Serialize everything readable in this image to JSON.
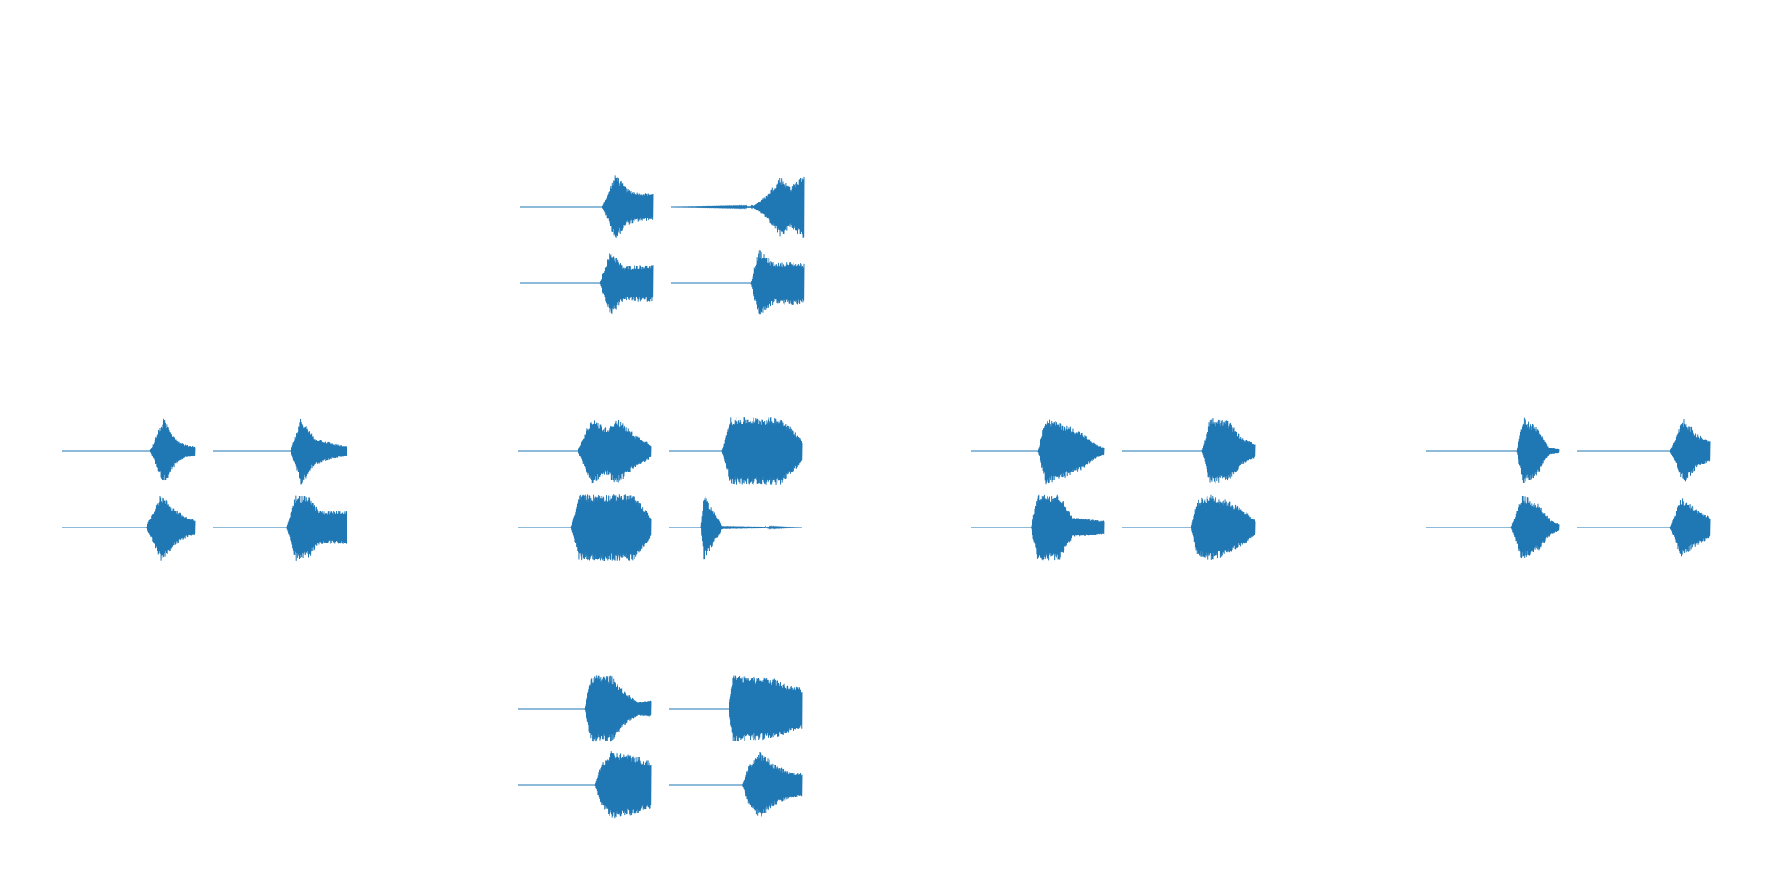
{
  "page": {
    "background": "#ffffff",
    "stroke_color": "#1f77b4"
  },
  "chart_data": {
    "type": "line",
    "description_note": "",
    "axes_visible": false,
    "groups": [
      {
        "group": "top-center",
        "panels": [
          {
            "profile": [
              [
                0.0,
                0.0
              ],
              [
                0.62,
                0.0
              ],
              [
                0.72,
                1.0
              ],
              [
                0.8,
                0.55
              ],
              [
                0.88,
                0.45
              ],
              [
                1.0,
                0.4
              ]
            ],
            "density": 1.0
          },
          {
            "profile": [
              [
                0.0,
                0.0
              ],
              [
                0.62,
                0.02
              ],
              [
                0.72,
                0.35
              ],
              [
                0.82,
                0.9
              ],
              [
                0.9,
                0.6
              ],
              [
                1.0,
                1.0
              ]
            ],
            "density": 1.1
          },
          {
            "profile": [
              [
                0.0,
                0.0
              ],
              [
                0.6,
                0.0
              ],
              [
                0.68,
                1.0
              ],
              [
                0.78,
                0.5
              ],
              [
                0.86,
                0.55
              ],
              [
                1.0,
                0.55
              ]
            ],
            "density": 1.0
          },
          {
            "profile": [
              [
                0.0,
                0.0
              ],
              [
                0.6,
                0.0
              ],
              [
                0.66,
                1.0
              ],
              [
                0.78,
                0.6
              ],
              [
                0.88,
                0.65
              ],
              [
                1.0,
                0.6
              ]
            ],
            "density": 1.0
          }
        ]
      },
      {
        "group": "middle-left",
        "panels": [
          {
            "profile": [
              [
                0.0,
                0.0
              ],
              [
                0.66,
                0.0
              ],
              [
                0.76,
                1.0
              ],
              [
                0.86,
                0.35
              ],
              [
                0.92,
                0.2
              ],
              [
                1.0,
                0.15
              ]
            ],
            "density": 1.0
          },
          {
            "profile": [
              [
                0.0,
                0.0
              ],
              [
                0.58,
                0.0
              ],
              [
                0.66,
                1.0
              ],
              [
                0.76,
                0.4
              ],
              [
                0.88,
                0.25
              ],
              [
                1.0,
                0.15
              ]
            ],
            "density": 1.0
          },
          {
            "profile": [
              [
                0.0,
                0.0
              ],
              [
                0.63,
                0.0
              ],
              [
                0.74,
                1.0
              ],
              [
                0.86,
                0.5
              ],
              [
                0.94,
                0.3
              ],
              [
                1.0,
                0.2
              ]
            ],
            "density": 1.0
          },
          {
            "profile": [
              [
                0.0,
                0.0
              ],
              [
                0.55,
                0.0
              ],
              [
                0.62,
                1.0
              ],
              [
                0.72,
                0.9
              ],
              [
                0.8,
                0.5
              ],
              [
                1.0,
                0.5
              ]
            ],
            "density": 1.0
          }
        ]
      },
      {
        "group": "middle-center",
        "panels": [
          {
            "profile": [
              [
                0.0,
                0.0
              ],
              [
                0.45,
                0.0
              ],
              [
                0.55,
                1.0
              ],
              [
                0.66,
                0.7
              ],
              [
                0.74,
                1.0
              ],
              [
                0.88,
                0.5
              ],
              [
                1.0,
                0.2
              ]
            ],
            "density": 1.0
          },
          {
            "profile": [
              [
                0.0,
                0.0
              ],
              [
                0.4,
                0.0
              ],
              [
                0.46,
                1.0
              ],
              [
                0.84,
                1.0
              ],
              [
                0.94,
                0.6
              ],
              [
                1.0,
                0.3
              ]
            ],
            "density": 1.3
          },
          {
            "profile": [
              [
                0.0,
                0.0
              ],
              [
                0.4,
                0.0
              ],
              [
                0.46,
                1.0
              ],
              [
                0.86,
                1.0
              ],
              [
                0.96,
                0.5
              ],
              [
                1.0,
                0.3
              ]
            ],
            "density": 1.3
          },
          {
            "profile": [
              [
                0.0,
                0.0
              ],
              [
                0.24,
                0.0
              ],
              [
                0.26,
                1.0
              ],
              [
                0.32,
                0.6
              ],
              [
                0.4,
                0.05
              ],
              [
                1.0,
                0.0
              ]
            ],
            "density": 1.0
          }
        ]
      },
      {
        "group": "middle-right",
        "panels": [
          {
            "profile": [
              [
                0.0,
                0.0
              ],
              [
                0.5,
                0.0
              ],
              [
                0.56,
                1.0
              ],
              [
                0.7,
                0.8
              ],
              [
                0.82,
                0.6
              ],
              [
                0.92,
                0.25
              ],
              [
                1.0,
                0.1
              ]
            ],
            "density": 1.0
          },
          {
            "profile": [
              [
                0.0,
                0.0
              ],
              [
                0.6,
                0.0
              ],
              [
                0.66,
                1.0
              ],
              [
                0.8,
                0.9
              ],
              [
                0.9,
                0.4
              ],
              [
                1.0,
                0.2
              ]
            ],
            "density": 1.1
          },
          {
            "profile": [
              [
                0.0,
                0.0
              ],
              [
                0.45,
                0.0
              ],
              [
                0.5,
                1.0
              ],
              [
                0.66,
                1.0
              ],
              [
                0.76,
                0.3
              ],
              [
                1.0,
                0.2
              ]
            ],
            "density": 1.3
          },
          {
            "profile": [
              [
                0.0,
                0.0
              ],
              [
                0.52,
                0.0
              ],
              [
                0.56,
                0.8
              ],
              [
                0.66,
                1.0
              ],
              [
                0.8,
                0.8
              ],
              [
                0.92,
                0.5
              ],
              [
                1.0,
                0.2
              ]
            ],
            "density": 1.2
          }
        ]
      },
      {
        "group": "far-right",
        "panels": [
          {
            "profile": [
              [
                0.0,
                0.0
              ],
              [
                0.68,
                0.0
              ],
              [
                0.73,
                1.0
              ],
              [
                0.84,
                0.7
              ],
              [
                0.92,
                0.1
              ],
              [
                1.0,
                0.05
              ]
            ],
            "density": 1.1
          },
          {
            "profile": [
              [
                0.0,
                0.0
              ],
              [
                0.7,
                0.0
              ],
              [
                0.8,
                1.0
              ],
              [
                0.9,
                0.5
              ],
              [
                1.0,
                0.3
              ]
            ],
            "density": 1.0
          },
          {
            "profile": [
              [
                0.0,
                0.0
              ],
              [
                0.64,
                0.0
              ],
              [
                0.72,
                1.0
              ],
              [
                0.84,
                0.7
              ],
              [
                0.94,
                0.2
              ],
              [
                1.0,
                0.1
              ]
            ],
            "density": 1.1
          },
          {
            "profile": [
              [
                0.0,
                0.0
              ],
              [
                0.7,
                0.0
              ],
              [
                0.78,
                0.9
              ],
              [
                0.88,
                0.6
              ],
              [
                1.0,
                0.3
              ]
            ],
            "density": 1.0
          }
        ]
      },
      {
        "group": "bottom-center",
        "panels": [
          {
            "profile": [
              [
                0.0,
                0.0
              ],
              [
                0.5,
                0.0
              ],
              [
                0.55,
                1.0
              ],
              [
                0.7,
                1.0
              ],
              [
                0.8,
                0.5
              ],
              [
                0.9,
                0.2
              ],
              [
                1.0,
                0.25
              ]
            ],
            "density": 1.2
          },
          {
            "profile": [
              [
                0.0,
                0.0
              ],
              [
                0.45,
                0.0
              ],
              [
                0.48,
                1.0
              ],
              [
                0.8,
                0.9
              ],
              [
                0.9,
                0.7
              ],
              [
                1.0,
                0.6
              ]
            ],
            "density": 1.4
          },
          {
            "profile": [
              [
                0.0,
                0.0
              ],
              [
                0.58,
                0.0
              ],
              [
                0.62,
                0.6
              ],
              [
                0.7,
                1.0
              ],
              [
                0.86,
                0.9
              ],
              [
                1.0,
                0.7
              ]
            ],
            "density": 1.1
          },
          {
            "profile": [
              [
                0.0,
                0.0
              ],
              [
                0.55,
                0.0
              ],
              [
                0.6,
                0.6
              ],
              [
                0.68,
                1.0
              ],
              [
                0.8,
                0.6
              ],
              [
                0.9,
                0.4
              ],
              [
                1.0,
                0.35
              ]
            ],
            "density": 1.1
          }
        ]
      }
    ]
  }
}
